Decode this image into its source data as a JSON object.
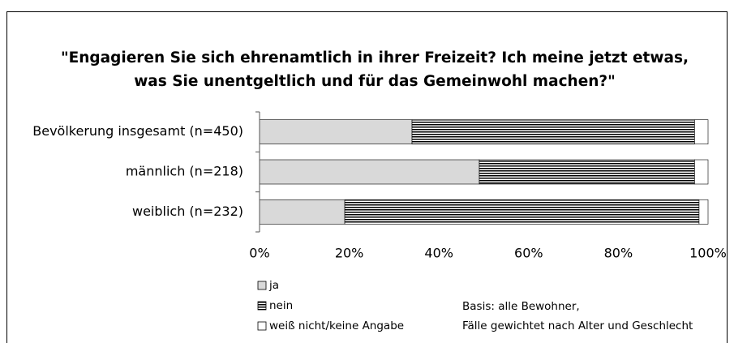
{
  "chart_data": {
    "type": "stacked-barh",
    "title": [
      "\"Engagieren Sie sich ehrenamtlich in ihrer Freizeit? Ich meine jetzt etwas,",
      "was Sie unentgeltlich und für das Gemeinwohl machen?\""
    ],
    "categories": [
      "Bevölkerung insgesamt (n=450)",
      "männlich (n=218)",
      "weiblich (n=232)"
    ],
    "series": [
      {
        "name": "ja",
        "color": "#d9d9d9",
        "values": [
          34,
          49,
          19
        ]
      },
      {
        "name": "nein",
        "color": "#000000",
        "pattern": "horizontal-stripes",
        "values": [
          63,
          48,
          79
        ]
      },
      {
        "name": "weiß nicht/keine Angabe",
        "color": "#ffffff",
        "values": [
          3,
          3,
          2
        ]
      }
    ],
    "xlim": [
      0,
      100
    ],
    "xticks": [
      {
        "value": 0,
        "label": "0%"
      },
      {
        "value": 20,
        "label": "20%"
      },
      {
        "value": 40,
        "label": "40%"
      },
      {
        "value": 60,
        "label": "60%"
      },
      {
        "value": 80,
        "label": "80%"
      },
      {
        "value": 100,
        "label": "100%"
      }
    ],
    "annotations": [
      "Basis: alle Bewohner,",
      "Fälle gewichtet nach Alter und Geschlecht"
    ]
  }
}
